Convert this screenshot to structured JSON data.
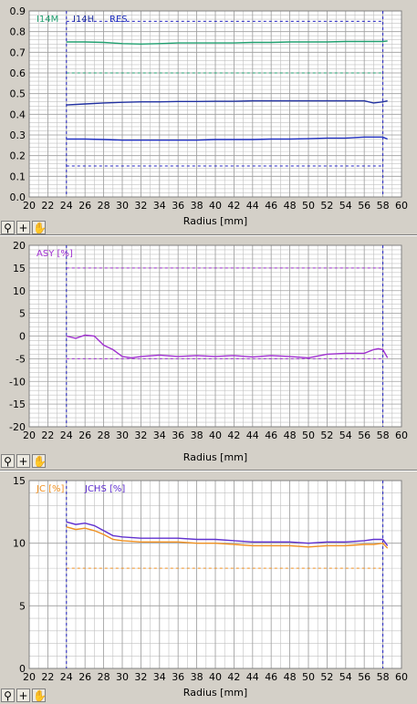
{
  "charts": [
    {
      "type": "line",
      "xlabel": "Radius [mm]",
      "xlim": [
        20,
        60
      ],
      "ylim": [
        0,
        0.9
      ],
      "xticks": [
        20,
        22,
        24,
        26,
        28,
        30,
        32,
        34,
        36,
        38,
        40,
        42,
        44,
        46,
        48,
        50,
        52,
        54,
        56,
        58,
        60
      ],
      "yticks": [
        0.0,
        0.1,
        0.2,
        0.3,
        0.4,
        0.5,
        0.6,
        0.7,
        0.8,
        0.9
      ],
      "ytick_labels": [
        "0.0",
        "0.1",
        "0.2",
        "0.3",
        "0.4",
        "0.5",
        "0.6",
        "0.7",
        "0.8",
        "0.9"
      ],
      "vlines": [
        24,
        58
      ],
      "legend": [
        {
          "name": "I14M",
          "color": "#20a070"
        },
        {
          "name": "I14H",
          "color": "#2030a0"
        },
        {
          "name": "RES",
          "color": "#2030c0"
        }
      ],
      "hlines": [
        {
          "y": 0.85,
          "color": "#2020c0"
        },
        {
          "y": 0.6,
          "color": "#20a070"
        },
        {
          "y": 0.15,
          "color": "#2020c0"
        }
      ],
      "series": [
        {
          "name": "I14M",
          "color": "#20a070",
          "x": [
            24,
            26,
            28,
            30,
            32,
            34,
            36,
            38,
            40,
            42,
            44,
            46,
            48,
            50,
            52,
            54,
            56,
            58,
            58.5
          ],
          "y": [
            0.75,
            0.75,
            0.748,
            0.742,
            0.74,
            0.742,
            0.745,
            0.745,
            0.745,
            0.745,
            0.748,
            0.748,
            0.75,
            0.75,
            0.75,
            0.752,
            0.752,
            0.752,
            0.755
          ]
        },
        {
          "name": "I14H",
          "color": "#2030a0",
          "x": [
            24,
            26,
            28,
            30,
            32,
            34,
            36,
            38,
            40,
            42,
            44,
            46,
            48,
            50,
            52,
            54,
            56,
            57,
            58,
            58.5
          ],
          "y": [
            0.445,
            0.45,
            0.455,
            0.458,
            0.46,
            0.46,
            0.462,
            0.462,
            0.463,
            0.463,
            0.465,
            0.465,
            0.465,
            0.465,
            0.465,
            0.465,
            0.465,
            0.455,
            0.46,
            0.465
          ]
        },
        {
          "name": "RES",
          "color": "#2030c0",
          "x": [
            24,
            26,
            28,
            30,
            32,
            34,
            36,
            38,
            40,
            42,
            44,
            46,
            48,
            50,
            52,
            54,
            56,
            58,
            58.5
          ],
          "y": [
            0.28,
            0.28,
            0.278,
            0.275,
            0.275,
            0.275,
            0.275,
            0.275,
            0.278,
            0.278,
            0.278,
            0.28,
            0.28,
            0.282,
            0.285,
            0.285,
            0.29,
            0.29,
            0.28
          ]
        }
      ]
    },
    {
      "type": "line",
      "xlabel": "Radius [mm]",
      "xlim": [
        20,
        60
      ],
      "ylim": [
        -20,
        20
      ],
      "xticks": [
        20,
        22,
        24,
        26,
        28,
        30,
        32,
        34,
        36,
        38,
        40,
        42,
        44,
        46,
        48,
        50,
        52,
        54,
        56,
        58,
        60
      ],
      "yticks": [
        -20,
        -15,
        -10,
        -5,
        0,
        5,
        10,
        15,
        20
      ],
      "ytick_labels": [
        "-20",
        "-15",
        "-10",
        "-5",
        "0",
        "5",
        "10",
        "15",
        "20"
      ],
      "vlines": [
        24,
        58
      ],
      "legend": [
        {
          "name": "ASY [%]",
          "color": "#a030d0"
        }
      ],
      "hlines": [
        {
          "y": 15,
          "color": "#a030d0"
        },
        {
          "y": -5,
          "color": "#a030d0"
        }
      ],
      "series": [
        {
          "name": "ASY [%]",
          "color": "#a030d0",
          "x": [
            24,
            25,
            26,
            27,
            28,
            29,
            30,
            31,
            32,
            34,
            36,
            38,
            40,
            42,
            44,
            46,
            48,
            50,
            52,
            54,
            56,
            57,
            57.5,
            58,
            58.5
          ],
          "y": [
            0,
            -0.5,
            0.2,
            0,
            -2,
            -3,
            -4.5,
            -4.8,
            -4.5,
            -4.2,
            -4.5,
            -4.3,
            -4.5,
            -4.3,
            -4.6,
            -4.3,
            -4.5,
            -4.8,
            -4,
            -3.8,
            -3.8,
            -3,
            -2.8,
            -3,
            -4.8
          ]
        }
      ]
    },
    {
      "type": "line",
      "xlabel": "Radius [mm]",
      "xlim": [
        20,
        60
      ],
      "ylim": [
        0,
        15
      ],
      "xticks": [
        20,
        22,
        24,
        26,
        28,
        30,
        32,
        34,
        36,
        38,
        40,
        42,
        44,
        46,
        48,
        50,
        52,
        54,
        56,
        58,
        60
      ],
      "yticks": [
        0,
        5,
        10,
        15
      ],
      "ytick_labels": [
        "0",
        "5",
        "10",
        "15"
      ],
      "vlines": [
        24,
        58
      ],
      "legend": [
        {
          "name": "JC [%]",
          "color": "#f09020"
        },
        {
          "name": "JCHS [%]",
          "color": "#6030d0"
        }
      ],
      "hlines": [
        {
          "y": 8,
          "color": "#f09020"
        }
      ],
      "series": [
        {
          "name": "JC [%]",
          "color": "#f09020",
          "x": [
            24,
            25,
            26,
            27,
            28,
            29,
            30,
            32,
            34,
            36,
            38,
            40,
            42,
            44,
            46,
            48,
            50,
            52,
            54,
            56,
            57,
            58,
            58.5
          ],
          "y": [
            11.3,
            11.1,
            11.2,
            11,
            10.7,
            10.3,
            10.2,
            10.1,
            10.1,
            10.1,
            10,
            10,
            9.9,
            9.8,
            9.8,
            9.8,
            9.7,
            9.8,
            9.8,
            9.9,
            9.9,
            10,
            9.6
          ]
        },
        {
          "name": "JCHS [%]",
          "color": "#6030d0",
          "x": [
            24,
            25,
            26,
            27,
            28,
            29,
            30,
            32,
            34,
            36,
            38,
            40,
            42,
            44,
            46,
            48,
            50,
            52,
            54,
            56,
            57,
            58,
            58.5
          ],
          "y": [
            11.7,
            11.5,
            11.6,
            11.4,
            11,
            10.6,
            10.5,
            10.4,
            10.4,
            10.4,
            10.3,
            10.3,
            10.2,
            10.1,
            10.1,
            10.1,
            10,
            10.1,
            10.1,
            10.2,
            10.3,
            10.3,
            9.8
          ]
        }
      ]
    }
  ],
  "toolbar": {
    "icons": [
      "zoom-icon",
      "crosshair-icon",
      "pan-hand-icon"
    ],
    "crosshair_glyph": "+"
  },
  "colors": {
    "plot_bg": "#ffffff",
    "grid": "#c0c0c0",
    "vline": "#2020c0",
    "panel_bg": "#d4d0c8"
  }
}
